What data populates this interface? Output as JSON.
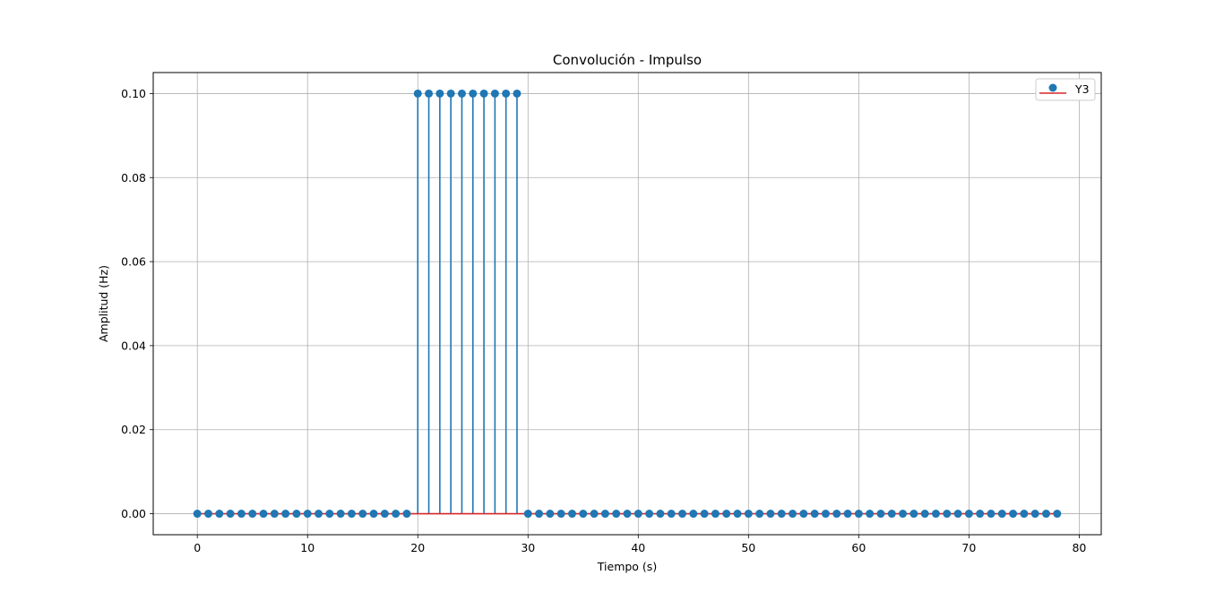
{
  "chart_data": {
    "type": "stem",
    "title": "Convolución - Impulso",
    "xlabel": "Tiempo (s)",
    "ylabel": "Amplitud (Hz)",
    "xlim": [
      -4,
      82
    ],
    "ylim": [
      -0.005,
      0.105
    ],
    "x_ticks": [
      0,
      10,
      20,
      30,
      40,
      50,
      60,
      70,
      80
    ],
    "x_tick_labels": [
      "0",
      "10",
      "20",
      "30",
      "40",
      "50",
      "60",
      "70",
      "80"
    ],
    "y_ticks": [
      0.0,
      0.02,
      0.04,
      0.06,
      0.08,
      0.1
    ],
    "y_tick_labels": [
      "0.00",
      "0.02",
      "0.04",
      "0.06",
      "0.08",
      "0.10"
    ],
    "grid": true,
    "legend_position": "top-right",
    "series": [
      {
        "name": "Y3",
        "marker_color": "#1f77b4",
        "stem_color": "#1f77b4",
        "baseline_color": "#d62728",
        "x": [
          0,
          1,
          2,
          3,
          4,
          5,
          6,
          7,
          8,
          9,
          10,
          11,
          12,
          13,
          14,
          15,
          16,
          17,
          18,
          19,
          20,
          21,
          22,
          23,
          24,
          25,
          26,
          27,
          28,
          29,
          30,
          31,
          32,
          33,
          34,
          35,
          36,
          37,
          38,
          39,
          40,
          41,
          42,
          43,
          44,
          45,
          46,
          47,
          48,
          49,
          50,
          51,
          52,
          53,
          54,
          55,
          56,
          57,
          58,
          59,
          60,
          61,
          62,
          63,
          64,
          65,
          66,
          67,
          68,
          69,
          70,
          71,
          72,
          73,
          74,
          75,
          76,
          77,
          78
        ],
        "y": [
          0,
          0,
          0,
          0,
          0,
          0,
          0,
          0,
          0,
          0,
          0,
          0,
          0,
          0,
          0,
          0,
          0,
          0,
          0,
          0,
          0.1,
          0.1,
          0.1,
          0.1,
          0.1,
          0.1,
          0.1,
          0.1,
          0.1,
          0.1,
          0,
          0,
          0,
          0,
          0,
          0,
          0,
          0,
          0,
          0,
          0,
          0,
          0,
          0,
          0,
          0,
          0,
          0,
          0,
          0,
          0,
          0,
          0,
          0,
          0,
          0,
          0,
          0,
          0,
          0,
          0,
          0,
          0,
          0,
          0,
          0,
          0,
          0,
          0,
          0,
          0,
          0,
          0,
          0,
          0,
          0,
          0,
          0,
          0
        ]
      }
    ]
  }
}
